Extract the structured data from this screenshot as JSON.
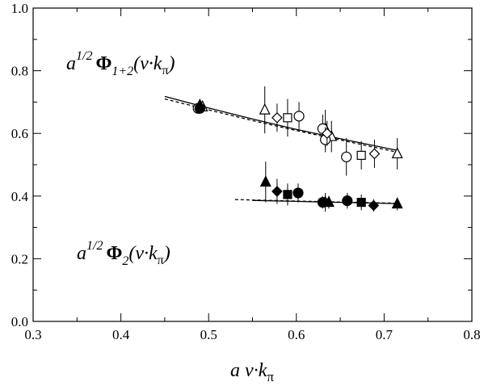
{
  "chart_data": {
    "type": "scatter",
    "xlim": [
      0.3,
      0.8
    ],
    "ylim": [
      0.0,
      1.0
    ],
    "xticks": [
      0.3,
      0.4,
      0.5,
      0.6,
      0.7,
      0.8
    ],
    "yticks": [
      0.0,
      0.2,
      0.4,
      0.6,
      0.8,
      1.0
    ],
    "xtick_labels": [
      "0.3",
      "0.4",
      "0.5",
      "0.6",
      "0.7",
      "0.8"
    ],
    "ytick_labels": [
      "0.0",
      "0.2",
      "0.4",
      "0.6",
      "0.8",
      "1.0"
    ],
    "xlabel": "a v·k",
    "xlabel_sub": "π",
    "grid": false,
    "annotations": [
      {
        "pre": "a",
        "sup": "1/2",
        "phi": "Φ",
        "sub": "1+2",
        "arg": "(v·k",
        "arg_sub": "π",
        "close": ")",
        "at": [
          0.34,
          0.8
        ]
      },
      {
        "pre": "a",
        "sup": "1/2",
        "phi": "Φ",
        "sub": "2",
        "arg": "(v·k",
        "arg_sub": "π",
        "close": ")",
        "at": [
          0.34,
          0.22
        ]
      }
    ],
    "series": [
      {
        "marker": "triangle-open",
        "points": [
          [
            0.493,
            0.685,
            0.0
          ],
          [
            0.564,
            0.675,
            0.075
          ],
          [
            0.633,
            0.615,
            0.06
          ],
          [
            0.64,
            0.59,
            0.05
          ],
          [
            0.715,
            0.535,
            0.05
          ]
        ]
      },
      {
        "marker": "circle-open",
        "points": [
          [
            0.488,
            0.68,
            0.0
          ],
          [
            0.603,
            0.655,
            0.045
          ],
          [
            0.63,
            0.615,
            0.045
          ],
          [
            0.633,
            0.58,
            0.04
          ],
          [
            0.657,
            0.525,
            0.06
          ]
        ]
      },
      {
        "marker": "square-open",
        "points": [
          [
            0.59,
            0.65,
            0.06
          ],
          [
            0.674,
            0.53,
            0.045
          ]
        ]
      },
      {
        "marker": "diamond-open",
        "points": [
          [
            0.578,
            0.65,
            0.045
          ],
          [
            0.635,
            0.6,
            0.04
          ],
          [
            0.689,
            0.535,
            0.045
          ]
        ]
      },
      {
        "marker": "triangle-filled",
        "points": [
          [
            0.49,
            0.69,
            0.0
          ],
          [
            0.565,
            0.445,
            0.065
          ],
          [
            0.633,
            0.38,
            0.03
          ],
          [
            0.637,
            0.38,
            0.02
          ],
          [
            0.715,
            0.375,
            0.02
          ]
        ]
      },
      {
        "marker": "circle-filled",
        "points": [
          [
            0.49,
            0.68,
            0.0
          ],
          [
            0.602,
            0.41,
            0.03
          ],
          [
            0.63,
            0.38,
            0.02
          ],
          [
            0.658,
            0.385,
            0.025
          ]
        ]
      },
      {
        "marker": "square-filled",
        "points": [
          [
            0.59,
            0.405,
            0.035
          ],
          [
            0.674,
            0.38,
            0.025
          ]
        ]
      },
      {
        "marker": "diamond-filled",
        "points": [
          [
            0.578,
            0.415,
            0.04
          ],
          [
            0.688,
            0.37,
            0.02
          ]
        ]
      }
    ],
    "fit_lines": [
      {
        "style": "solid",
        "points": [
          [
            0.45,
            0.718
          ],
          [
            0.5,
            0.681
          ],
          [
            0.55,
            0.646
          ],
          [
            0.6,
            0.613
          ],
          [
            0.65,
            0.583
          ],
          [
            0.715,
            0.546
          ]
        ]
      },
      {
        "style": "dashed",
        "points": [
          [
            0.45,
            0.71
          ],
          [
            0.5,
            0.675
          ],
          [
            0.55,
            0.641
          ],
          [
            0.6,
            0.609
          ],
          [
            0.65,
            0.579
          ],
          [
            0.715,
            0.54
          ]
        ]
      },
      {
        "style": "solid",
        "points": [
          [
            0.55,
            0.386
          ],
          [
            0.6,
            0.383
          ],
          [
            0.65,
            0.38
          ],
          [
            0.715,
            0.376
          ]
        ]
      },
      {
        "style": "dashed",
        "points": [
          [
            0.53,
            0.389
          ],
          [
            0.6,
            0.384
          ],
          [
            0.65,
            0.381
          ],
          [
            0.715,
            0.377
          ]
        ]
      }
    ]
  }
}
